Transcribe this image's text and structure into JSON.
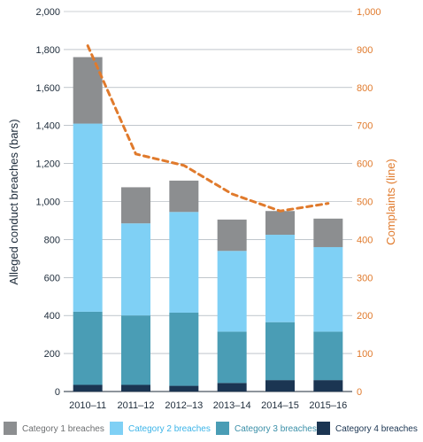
{
  "chart_data": {
    "type": "bar",
    "categories": [
      "2010–11",
      "2011–12",
      "2012–13",
      "2013–14",
      "2014–15",
      "2015–16"
    ],
    "series": [
      {
        "name": "Category 4 breaches",
        "values": [
          35,
          35,
          30,
          45,
          60,
          60
        ],
        "color": "#1b3552"
      },
      {
        "name": "Category 3 breaches",
        "values": [
          385,
          365,
          385,
          270,
          305,
          255
        ],
        "color": "#4a9db5"
      },
      {
        "name": "Category 2 breaches",
        "values": [
          990,
          485,
          530,
          425,
          460,
          445
        ],
        "color": "#7fd0f5"
      },
      {
        "name": "Category 1 breaches",
        "values": [
          350,
          190,
          165,
          165,
          125,
          150
        ],
        "color": "#8c8e90"
      }
    ],
    "line": {
      "values": [
        910,
        625,
        595,
        520,
        475,
        495
      ],
      "color": "#e07a2c",
      "style": "dashed"
    },
    "ylabel": "Alleged conduct breaches (bars)",
    "y2label": "Complaints (line)",
    "ylim": [
      0,
      2000
    ],
    "y2lim": [
      0,
      1000
    ],
    "yticks": [
      "0",
      "200",
      "400",
      "600",
      "800",
      "1,000",
      "1,200",
      "1,400",
      "1,600",
      "1,800",
      "2,000"
    ],
    "y2ticks": [
      "0",
      "100",
      "200",
      "300",
      "400",
      "500",
      "600",
      "700",
      "800",
      "900",
      "1,000"
    ],
    "grid": true,
    "legend_position": "bottom",
    "legend_order": [
      "Category 1 breaches",
      "Category 2 breaches",
      "Category 3 breaches",
      "Category 4 breaches"
    ],
    "legend_colors": {
      "Category 1 breaches": {
        "swatch": "#8c8e90",
        "text": "#6d6f71"
      },
      "Category 2 breaches": {
        "swatch": "#7fd0f5",
        "text": "#3cb4e8"
      },
      "Category 3 breaches": {
        "swatch": "#4a9db5",
        "text": "#3a8fa8"
      },
      "Category 4 breaches": {
        "swatch": "#1b3552",
        "text": "#1b3552"
      }
    }
  }
}
